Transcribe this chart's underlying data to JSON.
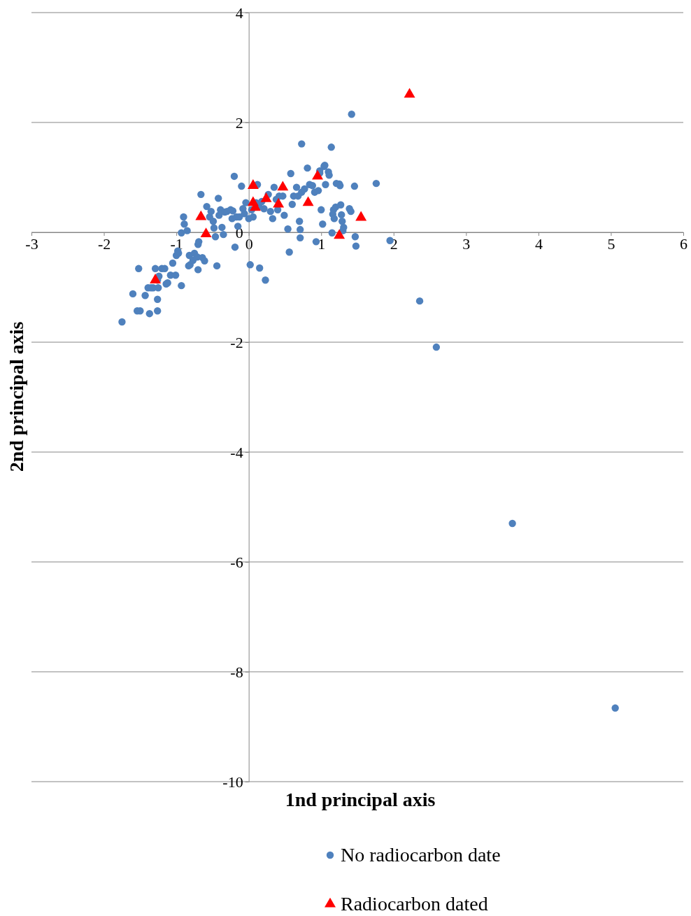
{
  "chart_data": {
    "type": "scatter",
    "xlabel": "1nd principal axis",
    "ylabel": "2nd principal axis",
    "xlim": [
      -3,
      6
    ],
    "xticks": [
      -3,
      -2,
      -1,
      0,
      1,
      2,
      3,
      4,
      5,
      6
    ],
    "ylim": [
      -10,
      4
    ],
    "yticks": [
      -10,
      -8,
      -6,
      -4,
      -2,
      0,
      2,
      4
    ],
    "grid": "y",
    "legend": "bottom",
    "series": [
      {
        "name": "No radiocarbon date",
        "color": "#4f81bd",
        "marker": "circle",
        "x": [
          -1.75,
          -1.6,
          -1.52,
          -1.54,
          -1.5,
          -1.43,
          -1.39,
          -1.37,
          -1.35,
          -1.32,
          -1.29,
          -1.26,
          -1.26,
          -1.26,
          -1.25,
          -1.24,
          -1.2,
          -1.16,
          -1.14,
          -1.12,
          -1.08,
          -1.05,
          -1.01,
          -1.0,
          -0.98,
          -0.97,
          -0.93,
          -0.93,
          -0.9,
          -0.89,
          -0.85,
          -0.83,
          -0.82,
          -0.81,
          -0.77,
          -0.75,
          -0.71,
          -0.7,
          -0.7,
          -0.69,
          -0.66,
          -0.64,
          -0.61,
          -0.58,
          -0.54,
          -0.52,
          -0.49,
          -0.48,
          -0.46,
          -0.44,
          -0.42,
          -0.41,
          -0.39,
          -0.37,
          -0.35,
          -0.33,
          -0.3,
          -0.25,
          -0.23,
          -0.22,
          -0.2,
          -0.19,
          -0.17,
          -0.15,
          -0.13,
          -0.1,
          -0.08,
          -0.06,
          -0.04,
          0.0,
          0.02,
          0.04,
          0.06,
          0.1,
          0.12,
          0.14,
          0.15,
          0.18,
          0.21,
          0.23,
          0.27,
          0.3,
          0.33,
          0.35,
          0.38,
          0.4,
          0.42,
          0.47,
          0.49,
          0.54,
          0.56,
          0.58,
          0.6,
          0.62,
          0.66,
          0.68,
          0.7,
          0.71,
          0.71,
          0.73,
          0.77,
          0.81,
          0.84,
          0.88,
          0.91,
          0.93,
          0.96,
          0.98,
          0.98,
          1.0,
          1.02,
          1.04,
          1.05,
          1.06,
          1.1,
          1.11,
          1.14,
          1.15,
          1.16,
          1.17,
          1.18,
          1.2,
          1.21,
          1.25,
          1.26,
          1.27,
          1.28,
          1.29,
          1.3,
          1.31,
          1.39,
          1.41,
          1.46,
          1.47,
          1.48,
          1.76,
          1.95,
          1.42,
          0.73,
          2.36,
          2.59,
          3.64,
          5.06
        ],
        "values": [
          -1.63,
          -1.12,
          -0.66,
          -1.43,
          -1.43,
          -1.15,
          -1.01,
          -1.48,
          -1.01,
          -1.01,
          -0.66,
          -1.22,
          -1.43,
          -0.87,
          -1.01,
          -0.8,
          -0.66,
          -0.66,
          -0.94,
          -0.92,
          -0.78,
          -0.56,
          -0.78,
          -0.42,
          -0.34,
          -0.38,
          -0.97,
          -0.01,
          0.28,
          0.15,
          0.03,
          -0.61,
          -0.42,
          -0.59,
          -0.51,
          -0.38,
          -0.45,
          -0.68,
          -0.22,
          -0.17,
          0.69,
          -0.46,
          -0.52,
          0.47,
          0.28,
          0.38,
          0.2,
          0.08,
          -0.08,
          -0.61,
          0.62,
          0.31,
          0.41,
          0.09,
          -0.04,
          0.37,
          0.38,
          0.41,
          0.25,
          0.39,
          1.02,
          -0.27,
          0.28,
          0.11,
          0.28,
          0.84,
          0.43,
          0.34,
          0.54,
          0.25,
          -0.59,
          0.41,
          0.28,
          0.54,
          0.87,
          0.47,
          -0.65,
          0.56,
          0.43,
          -0.87,
          0.69,
          0.38,
          0.25,
          0.82,
          0.6,
          0.41,
          0.66,
          0.66,
          0.31,
          0.06,
          -0.36,
          1.07,
          0.51,
          0.66,
          0.82,
          0.66,
          0.2,
          0.05,
          -0.1,
          0.73,
          0.79,
          1.17,
          0.87,
          0.85,
          0.73,
          -0.17,
          0.76,
          1.08,
          1.12,
          0.41,
          0.15,
          1.2,
          1.22,
          0.87,
          1.1,
          1.04,
          1.55,
          -0.01,
          0.33,
          0.41,
          0.25,
          0.46,
          0.89,
          0.88,
          0.85,
          0.5,
          0.32,
          0.2,
          0.03,
          0.09,
          0.43,
          0.38,
          0.84,
          -0.08,
          -0.25,
          0.89,
          -0.15,
          2.15,
          1.61,
          -1.25,
          -2.09,
          -5.3,
          -8.66
        ]
      },
      {
        "name": "Radiocarbon dated",
        "color": "#ff0000",
        "marker": "triangle",
        "x": [
          -1.29,
          -0.66,
          -0.59,
          0.06,
          0.06,
          0.09,
          0.24,
          0.41,
          0.47,
          0.82,
          0.95,
          1.25,
          1.55,
          2.22
        ],
        "values": [
          -0.87,
          0.28,
          -0.03,
          0.85,
          0.54,
          0.45,
          0.61,
          0.51,
          0.82,
          0.54,
          1.02,
          -0.06,
          0.27,
          2.51
        ]
      }
    ]
  }
}
